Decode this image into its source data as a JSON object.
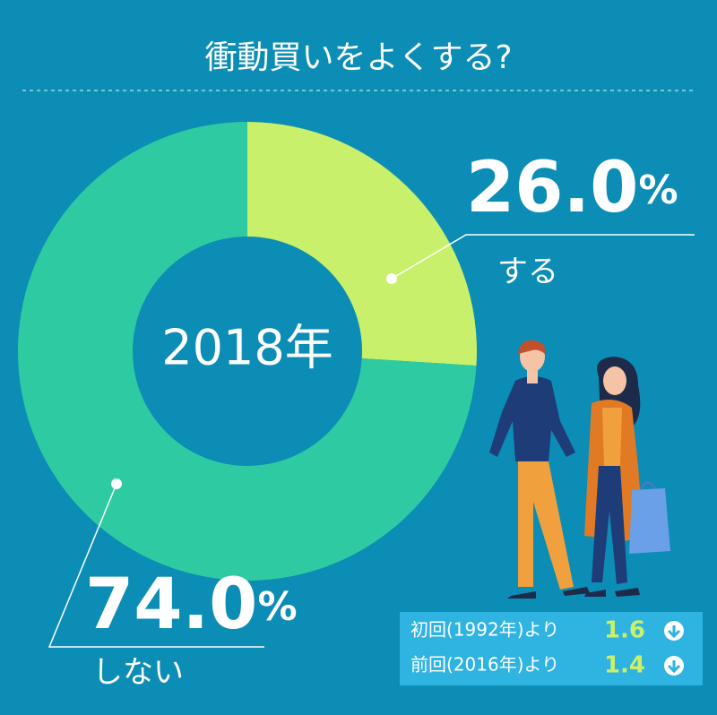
{
  "chart_data": {
    "type": "donut",
    "title": "衝動買いをよくする?",
    "center_label": "2018年",
    "categories": [
      "する",
      "しない"
    ],
    "values": [
      26.0,
      74.0
    ],
    "value_labels": [
      "26.0%",
      "74.0%"
    ],
    "colors": [
      "#c8f06a",
      "#2ecba2"
    ]
  },
  "comparisons": [
    {
      "label": "初回(1992年)より",
      "value": 1.6,
      "direction": "down"
    },
    {
      "label": "前回(2016年)より",
      "value": 1.4,
      "direction": "down"
    }
  ]
}
